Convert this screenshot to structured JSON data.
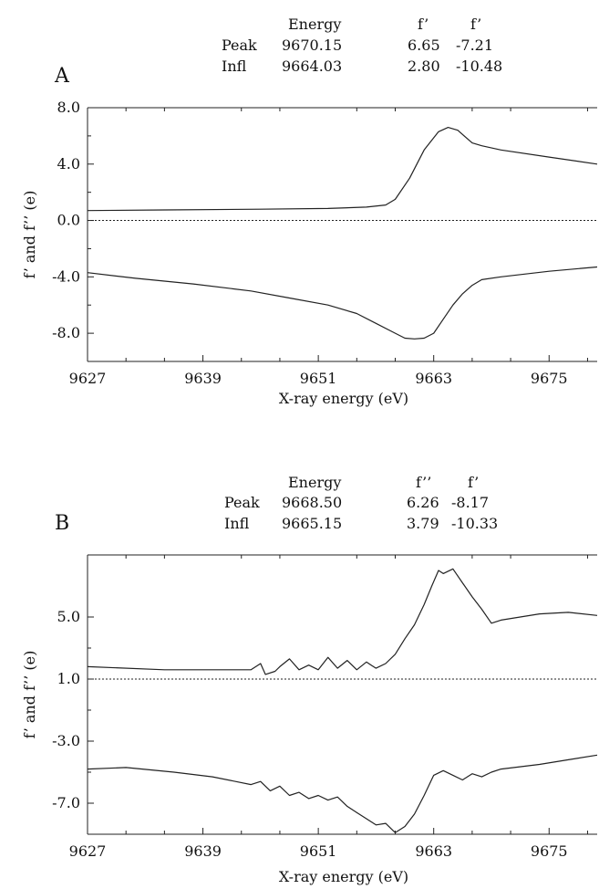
{
  "chart_data": [
    {
      "type": "line",
      "panel_label": "A",
      "table": {
        "headers": [
          "Energy",
          "f’",
          "f’"
        ],
        "rows": [
          {
            "label": "Peak",
            "energy": "9670.15",
            "fpp": "6.65",
            "fp": "-7.21"
          },
          {
            "label": "Infl",
            "energy": "9664.03",
            "fpp": "2.80",
            "fp": "-10.48"
          }
        ]
      },
      "xlabel": "X-ray energy (eV)",
      "ylabel": "f’ and f’’ (e)",
      "xlim": [
        9627,
        9680
      ],
      "ylim": [
        -10.0,
        8.0
      ],
      "xticks": [
        9627,
        9639,
        9651,
        9663,
        9675
      ],
      "xtick_labels": [
        "9627",
        "9639",
        "9651",
        "9663",
        "9675"
      ],
      "yticks": [
        8.0,
        4.0,
        0.0,
        -4.0,
        -8.0
      ],
      "ytick_labels": [
        "8.0",
        "4.0",
        "0.0",
        "-4.0",
        "-8.0"
      ],
      "baseline": 0.0,
      "series": [
        {
          "x": [
            9627,
            9635,
            9645,
            9652,
            9656,
            9658,
            9659,
            9660.5,
            9662,
            9663.5,
            9664.5,
            9665.5,
            9667,
            9668,
            9670,
            9675,
            9680
          ],
          "y": [
            0.7,
            0.75,
            0.8,
            0.85,
            0.95,
            1.1,
            1.5,
            3.0,
            5.0,
            6.3,
            6.6,
            6.4,
            5.5,
            5.3,
            5.0,
            4.5,
            4.0
          ]
        },
        {
          "x": [
            9627,
            9632,
            9638,
            9644,
            9648,
            9652,
            9655,
            9657,
            9659,
            9660,
            9661,
            9662,
            9663,
            9664,
            9665,
            9666,
            9667,
            9668,
            9670,
            9675,
            9680
          ],
          "y": [
            -3.7,
            -4.1,
            -4.5,
            -5.0,
            -5.5,
            -6.0,
            -6.6,
            -7.3,
            -8.0,
            -8.35,
            -8.4,
            -8.35,
            -8.0,
            -7.0,
            -6.0,
            -5.2,
            -4.6,
            -4.2,
            -4.0,
            -3.6,
            -3.3
          ]
        }
      ]
    },
    {
      "type": "line",
      "panel_label": "B",
      "table": {
        "headers": [
          "Energy",
          "f’’",
          "f’"
        ],
        "rows": [
          {
            "label": "Peak",
            "energy": "9668.50",
            "fpp": "6.26",
            "fp": "-8.17"
          },
          {
            "label": "Infl",
            "energy": "9665.15",
            "fpp": "3.79",
            "fp": "-10.33"
          }
        ]
      },
      "xlabel": "X-ray energy (eV)",
      "ylabel": "f’ and f’’ (e)",
      "xlim": [
        9627,
        9680
      ],
      "ylim": [
        -9.0,
        9.0
      ],
      "xticks": [
        9627,
        9639,
        9651,
        9663,
        9675
      ],
      "xtick_labels": [
        "9627",
        "9639",
        "9651",
        "9663",
        "9675"
      ],
      "yticks": [
        5.0,
        1.0,
        -3.0,
        -7.0
      ],
      "ytick_labels": [
        "5.0",
        "1.0",
        "-3.0",
        "-7.0"
      ],
      "baseline": 1.0,
      "series": [
        {
          "x": [
            9627,
            9635,
            9644,
            9645,
            9645.5,
            9646.5,
            9647,
            9648,
            9649,
            9650,
            9651,
            9652,
            9653,
            9654,
            9655,
            9656,
            9656.5,
            9657,
            9658,
            9659,
            9660,
            9661,
            9662,
            9662.8,
            9663.5,
            9664,
            9665,
            9666,
            9667,
            9668,
            9669,
            9670,
            9674,
            9677,
            9680
          ],
          "y": [
            1.8,
            1.6,
            1.6,
            2.0,
            1.3,
            1.5,
            1.8,
            2.3,
            1.6,
            1.9,
            1.6,
            2.4,
            1.7,
            2.2,
            1.6,
            2.1,
            1.9,
            1.7,
            2.0,
            2.6,
            3.6,
            4.5,
            5.8,
            7.0,
            8.0,
            7.8,
            8.1,
            7.2,
            6.3,
            5.5,
            4.6,
            4.8,
            5.2,
            5.3,
            5.1
          ]
        },
        {
          "x": [
            9627,
            9631,
            9636,
            9640,
            9644,
            9645,
            9646,
            9647,
            9648,
            9649,
            9650,
            9651,
            9652,
            9653,
            9654,
            9655,
            9656,
            9657,
            9658,
            9659,
            9660,
            9661,
            9662,
            9663,
            9664,
            9665,
            9666,
            9667,
            9668,
            9669,
            9670,
            9674,
            9677,
            9680
          ],
          "y": [
            -4.8,
            -4.7,
            -5.0,
            -5.3,
            -5.8,
            -5.6,
            -6.2,
            -5.9,
            -6.5,
            -6.3,
            -6.7,
            -6.5,
            -6.8,
            -6.6,
            -7.2,
            -7.6,
            -8.0,
            -8.4,
            -8.3,
            -8.9,
            -8.5,
            -7.7,
            -6.5,
            -5.2,
            -4.9,
            -5.2,
            -5.5,
            -5.1,
            -5.3,
            -5.0,
            -4.8,
            -4.5,
            -4.2,
            -3.9
          ]
        }
      ]
    }
  ]
}
